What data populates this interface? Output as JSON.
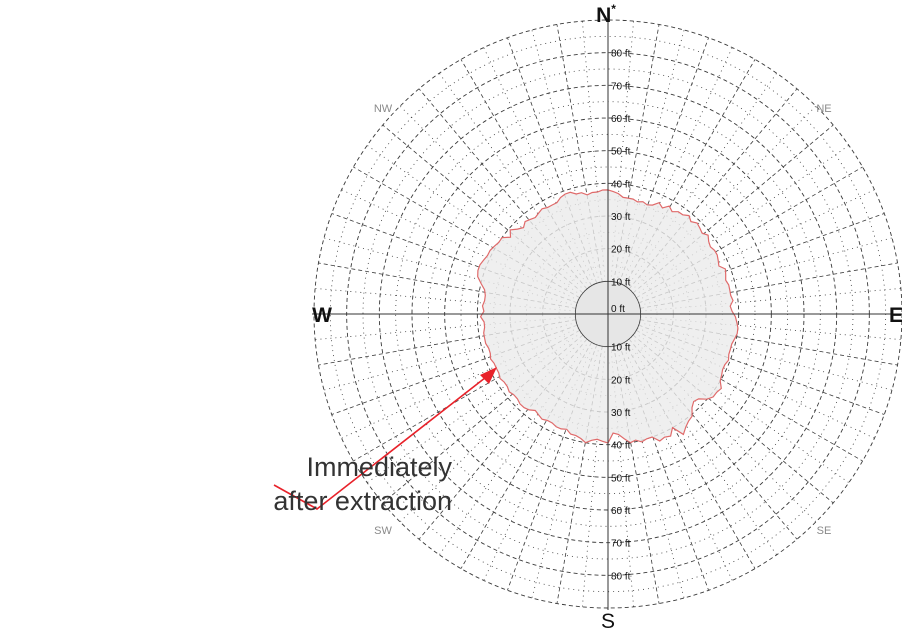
{
  "chart_data": {
    "type": "polar-area",
    "directions": {
      "north": "N",
      "north_mark": "*",
      "south": "S",
      "east": "E",
      "west": "W",
      "ne": "NE",
      "nw": "NW",
      "se": "SE",
      "sw": "SW"
    },
    "radial_unit": "ft",
    "radial_ticks": [
      0,
      10,
      20,
      30,
      40,
      50,
      60,
      70,
      80
    ],
    "rmax": 90,
    "inner_radius": 10,
    "spokes_every_deg": 10,
    "annotation": {
      "line1": "Immediately",
      "line2": "after extraction"
    },
    "series": [
      {
        "values_ft": [
          38,
          37.5,
          37,
          36,
          36,
          36,
          35.5,
          36,
          35.5,
          36,
          37.5,
          36.5,
          38,
          37,
          38,
          38,
          39,
          38,
          39,
          38.5,
          38,
          39,
          38,
          37.5,
          38,
          38,
          37.5,
          37,
          38.5,
          38,
          37.5,
          38,
          38,
          38,
          38.5,
          37.5,
          38,
          39,
          39.5,
          40,
          40,
          39.5,
          39,
          39,
          39,
          39.5,
          39,
          39,
          39.5,
          40,
          41.5,
          41,
          41,
          40,
          38,
          37.5,
          38.5,
          40.5,
          41,
          42,
          43.5,
          40,
          42,
          41.5,
          42,
          40,
          40,
          40.5,
          39.5,
          40,
          38.5,
          37,
          36.5,
          39.5,
          39,
          38.5,
          39,
          40,
          39,
          38.5,
          38.5,
          37.5,
          38,
          38,
          37.5,
          37.5,
          38,
          37.5,
          37,
          38,
          38.5,
          38.5,
          38,
          38,
          38.5,
          38,
          38,
          38.5,
          38,
          38,
          38,
          38.5,
          38,
          38,
          38.5,
          38.5,
          38.5,
          38,
          38,
          39,
          38,
          38.5,
          38,
          38,
          38.5,
          40,
          41.5,
          42,
          42,
          41.5,
          41,
          41,
          40.5,
          40,
          40,
          38,
          39.5,
          38,
          37,
          38,
          37.5,
          37,
          37.5,
          38,
          37.5,
          37.5,
          37.5,
          38.5,
          39,
          39,
          38,
          38,
          37,
          37.5,
          37.5,
          38
        ],
        "colors": {
          "outline": "#e06a6a",
          "fill": "#ebebeb"
        }
      }
    ],
    "colors": {
      "grid": "#3a3a3a",
      "axis": "#333333",
      "arrow": "#e8222a",
      "direction_minor": "#8a8a8a",
      "center_fill": "#e6e6e6"
    }
  }
}
